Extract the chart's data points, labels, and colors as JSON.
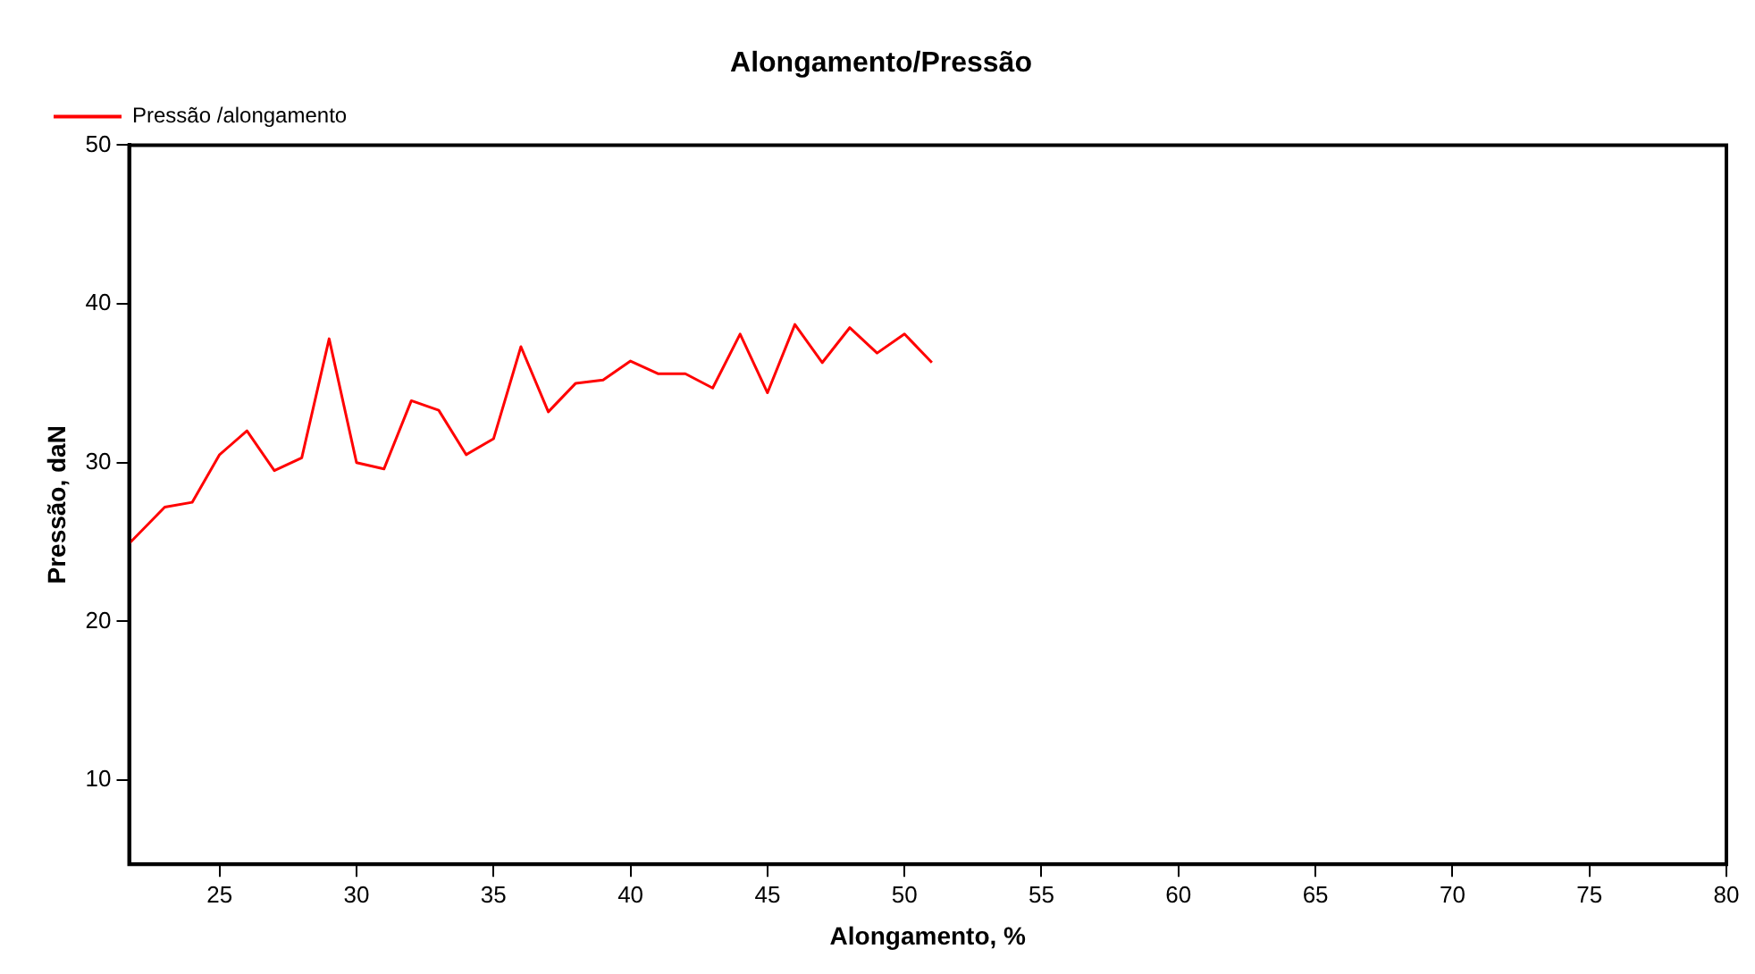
{
  "chart_data": {
    "type": "line",
    "title": "Alongamento/Pressão",
    "xlabel": "Alongamento, %",
    "ylabel": "Pressão, daN",
    "x": [
      21.7,
      23,
      24,
      25,
      26,
      27,
      28,
      29,
      30,
      31,
      32,
      33,
      34,
      35,
      36,
      37,
      38,
      39,
      40,
      41,
      42,
      43,
      44,
      45,
      46,
      47,
      48,
      49,
      50,
      51
    ],
    "series": [
      {
        "name": "Pressão /alongamento",
        "color": "#ff0000",
        "values": [
          24.9,
          27.2,
          27.5,
          30.5,
          32.0,
          29.5,
          30.3,
          37.8,
          30.0,
          29.6,
          33.9,
          33.3,
          30.5,
          31.5,
          37.3,
          33.2,
          35.0,
          35.2,
          36.4,
          35.6,
          35.6,
          34.7,
          38.1,
          34.4,
          38.7,
          36.3,
          38.5,
          36.9,
          38.1,
          36.3
        ]
      }
    ],
    "xlim": [
      21.7,
      80
    ],
    "xticks": [
      25,
      30,
      35,
      40,
      45,
      50,
      55,
      60,
      65,
      70,
      75,
      80
    ],
    "ylim": [
      4.7,
      50
    ],
    "yticks": [
      10,
      20,
      30,
      40,
      50
    ],
    "grid": false,
    "legend": "top left",
    "marker": "none",
    "line_style": "solid"
  }
}
